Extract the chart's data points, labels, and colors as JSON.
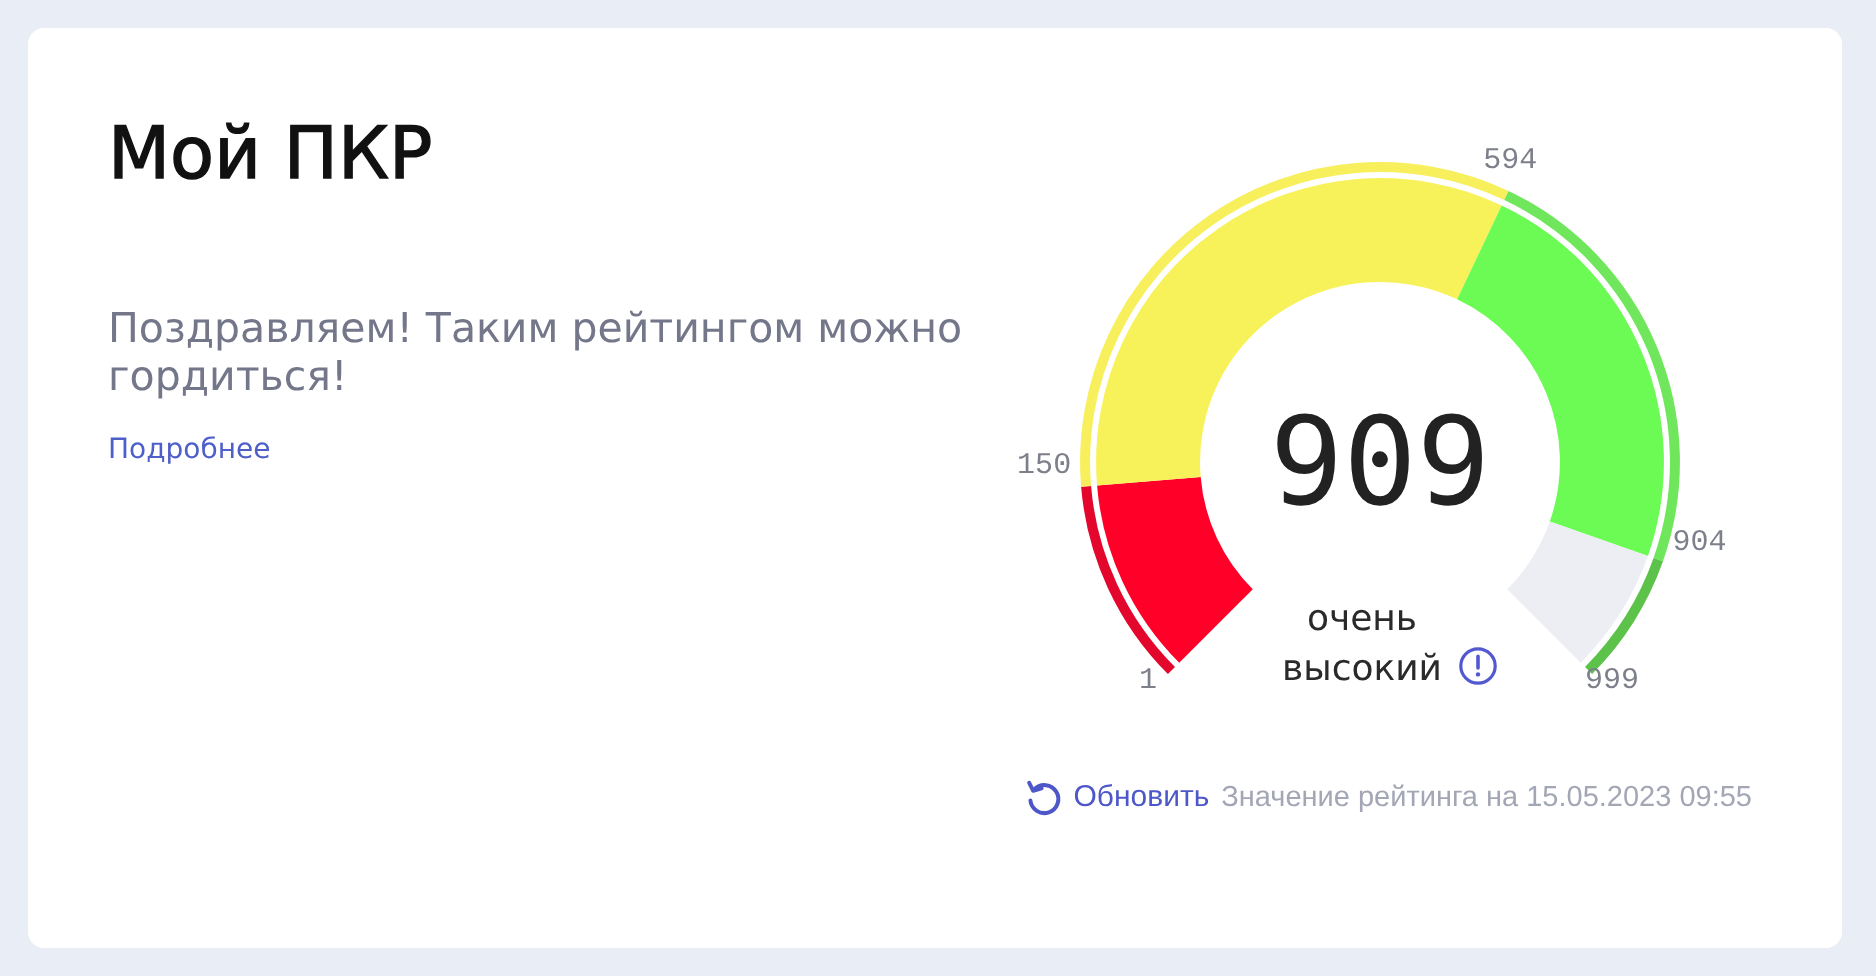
{
  "chart_data": {
    "type": "donut",
    "title": "Мой ПКР",
    "subtitle": "Поздравляем! Таким рейтингом можно гордиться!",
    "categories": [
      null,
      null,
      null,
      null
    ],
    "series": [
      {
        "values": [
          14.9,
          44.5,
          31.1,
          9.5
        ],
        "colors": [
          "#ff0029",
          "#f8f25a",
          "#6bfb54",
          "#eceef3"
        ]
      },
      {
        "values": [
          14.9,
          44.5,
          31.1,
          9.5
        ],
        "colors": [
          "#e3062d",
          "#f7ef5c",
          "#70e65c",
          "#5cc249"
        ]
      }
    ],
    "annotations": [
      "Подробнее",
      "909",
      "очень высокий",
      "Обновить",
      "Значение рейтинга на 15.05.2023 09:55",
      "1",
      "150",
      "594",
      "904",
      "999"
    ]
  }
}
